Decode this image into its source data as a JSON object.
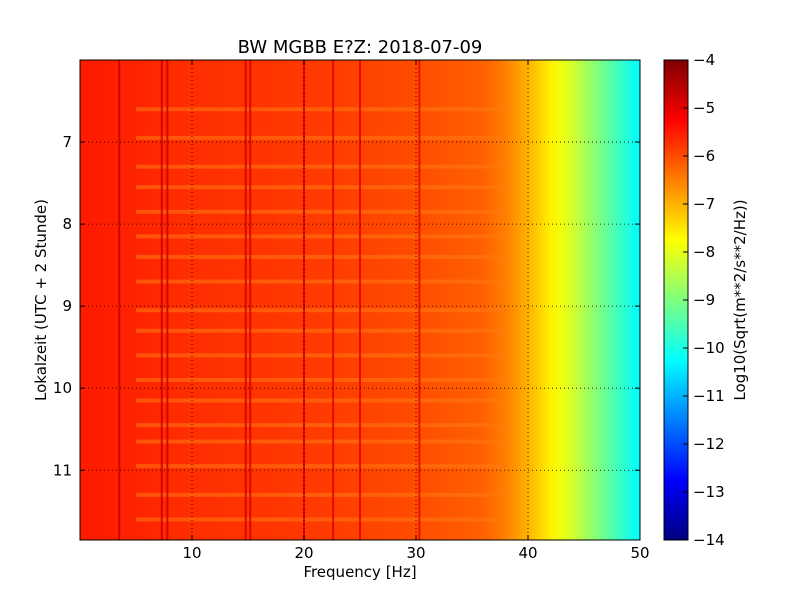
{
  "chart_data": {
    "type": "heatmap",
    "title": "BW MGBB E?Z: 2018-07-09",
    "xlabel": "Frequency [Hz]",
    "ylabel": "Lokalzeit (UTC + 2 Stunde)",
    "xlim": [
      0,
      50
    ],
    "ylim": [
      11.85,
      6.0
    ],
    "y_inverted": true,
    "x_ticks": [
      10,
      20,
      30,
      40,
      50
    ],
    "y_ticks": [
      7,
      8,
      9,
      10,
      11
    ],
    "grid": true,
    "colorbar": {
      "label": "Log10(Sqrt(m**2/s**2/Hz))",
      "range": [
        -14,
        -4
      ],
      "ticks": [
        -4,
        -5,
        -6,
        -7,
        -8,
        -9,
        -10,
        -11,
        -12,
        -13,
        -14
      ],
      "colormap": "jet",
      "colors": [
        "#00007f",
        "#0000ff",
        "#007fff",
        "#00ffff",
        "#7fff7f",
        "#ffff00",
        "#ff7f00",
        "#ff0000",
        "#7f0000"
      ]
    },
    "spectral_profile": {
      "frequency_hz": [
        0,
        5,
        10,
        20,
        30,
        36,
        38,
        40,
        42,
        44,
        46,
        48,
        50
      ],
      "log10_amplitude": [
        -5.5,
        -5.6,
        -5.7,
        -5.8,
        -6.0,
        -6.2,
        -6.5,
        -7.0,
        -7.6,
        -8.2,
        -8.9,
        -9.6,
        -10.3
      ]
    },
    "spectral_lines_hz": [
      3.5,
      7.3,
      7.8,
      14.8,
      15.2,
      20.0,
      22.6,
      25.0,
      30.3
    ],
    "time_bands_h": [
      6.6,
      6.95,
      7.3,
      7.55,
      7.85,
      8.15,
      8.4,
      8.7,
      9.05,
      9.3,
      9.6,
      9.9,
      10.15,
      10.45,
      10.65,
      10.95,
      11.3,
      11.6
    ]
  }
}
